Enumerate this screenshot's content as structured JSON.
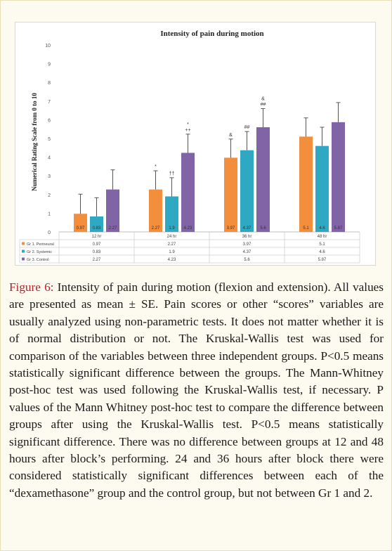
{
  "chart_data": {
    "type": "bar",
    "title": "Intensity of pain during motion",
    "ylabel": "Numerical Rating Scale from 0 to 10",
    "xlabel": "",
    "ylim": [
      0,
      10
    ],
    "yticks": [
      "0",
      "1",
      "2",
      "3",
      "4",
      "5",
      "6",
      "7",
      "8",
      "9",
      "10"
    ],
    "categories": [
      "12 hr",
      "24 hr",
      "36 hr",
      "48 hr"
    ],
    "series": [
      {
        "name": "Gr 1. Perineural",
        "color": "#f28e3c",
        "values": [
          0.97,
          2.27,
          3.97,
          5.1
        ],
        "labels": [
          "0.97",
          "2.27",
          "3.97",
          "5.1"
        ],
        "error": [
          1.05,
          1.0,
          1.0,
          1.0
        ]
      },
      {
        "name": "Gr 2. Systemic",
        "color": "#2fa8c4",
        "values": [
          0.83,
          1.9,
          4.37,
          4.6
        ],
        "labels": [
          "0.83",
          "1.9",
          "4.37",
          "4.6"
        ],
        "error": [
          1.0,
          1.0,
          1.0,
          1.0
        ]
      },
      {
        "name": "Gr 3. Control",
        "color": "#8064a6",
        "values": [
          2.27,
          4.23,
          5.6,
          5.87
        ],
        "labels": [
          "2.27",
          "4.23",
          "5.6",
          "5.87"
        ],
        "error": [
          1.05,
          1.0,
          1.0,
          1.05
        ]
      }
    ],
    "annotations": [
      {
        "category": 1,
        "series": 0,
        "text": "*"
      },
      {
        "category": 1,
        "series": 1,
        "text": "††"
      },
      {
        "category": 1,
        "series": 2,
        "text": "++"
      },
      {
        "category": 1,
        "series": 2,
        "text": "*"
      },
      {
        "category": 2,
        "series": 0,
        "text": "&"
      },
      {
        "category": 2,
        "series": 1,
        "text": "##"
      },
      {
        "category": 2,
        "series": 2,
        "text": "##"
      },
      {
        "category": 2,
        "series": 2,
        "text": "&"
      }
    ],
    "grid": false,
    "legend": "data-table-below"
  },
  "caption": {
    "label": "Figure 6:",
    "text": " Intensity of pain during motion (flexion and extension). All values are presented as mean ± SE. Pain scores or other “scores” variables are usually analyzed using non-parametric tests. It does not matter whether it is of normal distribution or not. The Kruskal-Wallis test was used for comparison of the variables between three independent groups. P<0.5 means statistically significant difference between the groups. The Mann-Whitney post-hoc test was used following the Kruskal-Wallis test, if necessary. P values of the Mann Whitney post-hoc test to compare the difference between groups after using the Kruskal-Wallis test. P<0.5 means statistically significant difference. There was no difference between groups at 12 and 48 hours after block’s performing. 24 and 36 hours after block there were considered statistically significant differences between each of the “dexamethasone” group and the control group, but not between Gr 1 and 2."
  }
}
